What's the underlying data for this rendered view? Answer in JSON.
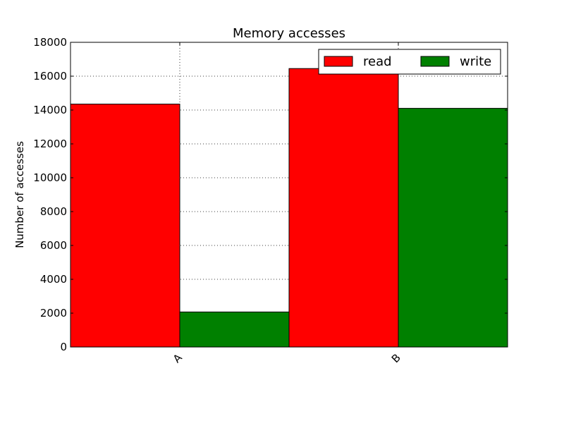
{
  "chart_data": {
    "type": "bar",
    "title": "Memory accesses",
    "xlabel": "",
    "ylabel": "Number of accesses",
    "categories": [
      "A",
      "B"
    ],
    "series": [
      {
        "name": "read",
        "color": "#ff0000",
        "values": [
          14350,
          16450
        ]
      },
      {
        "name": "write",
        "color": "#008000",
        "values": [
          2070,
          14100
        ]
      }
    ],
    "ylim": [
      0,
      18000
    ],
    "yticks": [
      0,
      2000,
      4000,
      6000,
      8000,
      10000,
      12000,
      14000,
      16000,
      18000
    ],
    "grid": true,
    "legend": {
      "placement": "top-right",
      "columns": 2
    }
  }
}
